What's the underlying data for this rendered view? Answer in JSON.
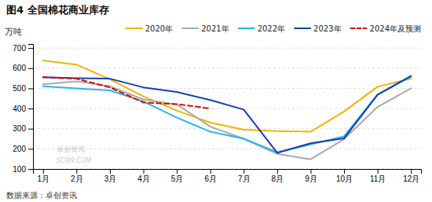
{
  "chart_data": {
    "type": "line",
    "title": "图4 全国棉花商业库存",
    "ylabel": "万吨",
    "annotations": [
      "数据来源：卓创资讯",
      "卓创资讯",
      "SCI99.COM"
    ],
    "categories": [
      "1月",
      "2月",
      "3月",
      "4月",
      "5月",
      "6月",
      "7月",
      "8月",
      "9月",
      "10月",
      "11月",
      "12月"
    ],
    "ylim": [
      100,
      720
    ],
    "yticks": [
      100,
      200,
      300,
      400,
      500,
      600,
      700
    ],
    "grid": true,
    "legend": "top",
    "series": [
      {
        "name": "2020年",
        "color": "#f0b400",
        "line_style": "solid",
        "values": [
          638,
          618,
          545,
          460,
          390,
          330,
          295,
          288,
          285,
          385,
          508,
          548
        ]
      },
      {
        "name": "2021年",
        "color": "#aaaaaa",
        "line_style": "solid",
        "values": [
          520,
          535,
          510,
          445,
          420,
          310,
          250,
          175,
          148,
          248,
          408,
          500
        ]
      },
      {
        "name": "2022年",
        "color": "#29b6e8",
        "line_style": "solid",
        "values": [
          510,
          500,
          490,
          435,
          355,
          285,
          250,
          183,
          222,
          262,
          470,
          558
        ]
      },
      {
        "name": "2023年",
        "color": "#1a3faa",
        "line_style": "solid",
        "values": [
          555,
          550,
          548,
          505,
          482,
          442,
          395,
          180,
          228,
          252,
          468,
          562
        ]
      },
      {
        "name": "2024年及预测",
        "color": "#cc1111",
        "line_style": "dashed",
        "values": [
          555,
          548,
          505,
          430,
          422,
          400,
          null,
          null,
          null,
          null,
          null,
          null
        ]
      }
    ]
  }
}
